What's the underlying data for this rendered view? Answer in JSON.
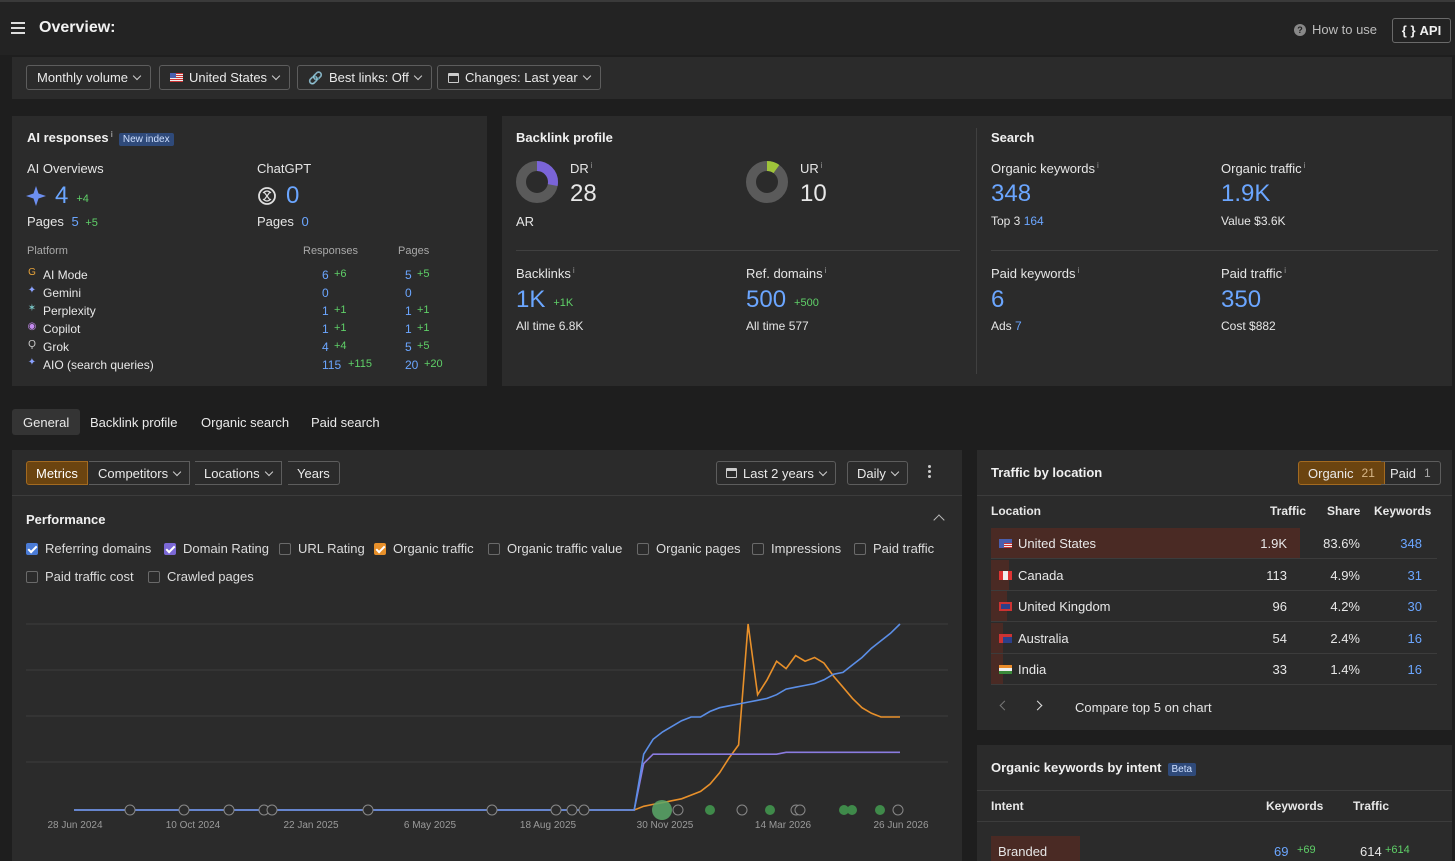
{
  "header": {
    "title": "Overview:",
    "how_to_use": "How to use",
    "api": "API",
    "api_icon": "{ }"
  },
  "filters": {
    "volume": "Monthly volume",
    "country": "United States",
    "best_links": "Best links: Off",
    "changes": "Changes: Last year"
  },
  "ai": {
    "title": "AI responses",
    "badge": "New index",
    "overviews_label": "AI Overviews",
    "overviews_value": "4",
    "overviews_delta": "+4",
    "chatgpt_label": "ChatGPT",
    "chatgpt_value": "0",
    "pages_label": "Pages",
    "overviews_pages": "5",
    "overviews_pages_delta": "+5",
    "chatgpt_pages": "0",
    "col_platform": "Platform",
    "col_responses": "Responses",
    "col_pages": "Pages",
    "rows": [
      {
        "name": "AI Mode",
        "icon": "google-icon",
        "responses": "6",
        "responses_delta": "+6",
        "pages": "5",
        "pages_delta": "+5"
      },
      {
        "name": "Gemini",
        "icon": "gemini-icon",
        "responses": "0",
        "responses_delta": "",
        "pages": "0",
        "pages_delta": ""
      },
      {
        "name": "Perplexity",
        "icon": "perplexity-icon",
        "responses": "1",
        "responses_delta": "+1",
        "pages": "1",
        "pages_delta": "+1"
      },
      {
        "name": "Copilot",
        "icon": "copilot-icon",
        "responses": "1",
        "responses_delta": "+1",
        "pages": "1",
        "pages_delta": "+1"
      },
      {
        "name": "Grok",
        "icon": "grok-icon",
        "responses": "4",
        "responses_delta": "+4",
        "pages": "5",
        "pages_delta": "+5"
      },
      {
        "name": "AIO (search queries)",
        "icon": "aio-icon",
        "responses": "115",
        "responses_delta": "+115",
        "pages": "20",
        "pages_delta": "+20"
      }
    ]
  },
  "backlinks": {
    "title": "Backlink profile",
    "dr_label": "DR",
    "dr_value": "28",
    "dr_fraction": 0.28,
    "ar_label": "AR",
    "ur_label": "UR",
    "ur_value": "10",
    "ur_fraction": 0.1,
    "backlinks_label": "Backlinks",
    "backlinks_value": "1K",
    "backlinks_delta": "+1K",
    "backlinks_alltime_label": "All time",
    "backlinks_alltime": "6.8K",
    "refdomains_label": "Ref. domains",
    "refdomains_value": "500",
    "refdomains_delta": "+500",
    "refdomains_alltime_label": "All time",
    "refdomains_alltime": "577"
  },
  "search": {
    "title": "Search",
    "ok_label": "Organic keywords",
    "ok_value": "348",
    "top3_label": "Top 3",
    "top3_value": "164",
    "ot_label": "Organic traffic",
    "ot_value": "1.9K",
    "value_label": "Value",
    "value_value": "$3.6K",
    "pk_label": "Paid keywords",
    "pk_value": "6",
    "ads_label": "Ads",
    "ads_value": "7",
    "pt_label": "Paid traffic",
    "pt_value": "350",
    "cost_label": "Cost",
    "cost_value": "$882"
  },
  "tabs": [
    "General",
    "Backlink profile",
    "Organic search",
    "Paid search"
  ],
  "chart_toolbar": {
    "metrics": "Metrics",
    "competitors": "Competitors",
    "locations": "Locations",
    "years": "Years",
    "range": "Last 2 years",
    "interval": "Daily"
  },
  "performance": {
    "title": "Performance",
    "checkboxes": [
      {
        "label": "Referring domains",
        "checked": true,
        "color": "#4a7bd6"
      },
      {
        "label": "Domain Rating",
        "checked": true,
        "color": "#7b68d6"
      },
      {
        "label": "URL Rating",
        "checked": false,
        "color": ""
      },
      {
        "label": "Organic traffic",
        "checked": true,
        "color": "#e8902a"
      },
      {
        "label": "Organic traffic value",
        "checked": false,
        "color": ""
      },
      {
        "label": "Organic pages",
        "checked": false,
        "color": ""
      },
      {
        "label": "Impressions",
        "checked": false,
        "color": ""
      },
      {
        "label": "Paid traffic",
        "checked": false,
        "color": ""
      },
      {
        "label": "Paid traffic cost",
        "checked": false,
        "color": ""
      },
      {
        "label": "Crawled pages",
        "checked": false,
        "color": ""
      }
    ]
  },
  "chart_data": {
    "type": "line",
    "x_ticks": [
      "28 Jun 2024",
      "10 Oct 2024",
      "22 Jan 2025",
      "6 May 2025",
      "18 Aug 2025",
      "30 Nov 2025",
      "14 Mar 2026",
      "26 Jun 2026"
    ],
    "grid": true,
    "series": [
      {
        "name": "Referring domains",
        "color": "#5b8ee6",
        "values": [
          0,
          0,
          0,
          0,
          0,
          0,
          0,
          0,
          0,
          0,
          0,
          0,
          0,
          0,
          0,
          0,
          0,
          0,
          0,
          0,
          0,
          0,
          0,
          0,
          0,
          0,
          0,
          0,
          0,
          0,
          0,
          0,
          0,
          0,
          0,
          0,
          0,
          0,
          0,
          0,
          0,
          0,
          0,
          0,
          0,
          0,
          0,
          0,
          0,
          0,
          0,
          0,
          0,
          0,
          0,
          0,
          0,
          0,
          0,
          0,
          0.3,
          0.38,
          0.42,
          0.45,
          0.48,
          0.5,
          0.5,
          0.53,
          0.55,
          0.56,
          0.57,
          0.58,
          0.59,
          0.6,
          0.62,
          0.65,
          0.66,
          0.67,
          0.68,
          0.7,
          0.73,
          0.74,
          0.78,
          0.82,
          0.87,
          0.91,
          0.95,
          1.0
        ]
      },
      {
        "name": "Domain Rating",
        "color": "#8a7be0",
        "values": [
          0,
          0,
          0,
          0,
          0,
          0,
          0,
          0,
          0,
          0,
          0,
          0,
          0,
          0,
          0,
          0,
          0,
          0,
          0,
          0,
          0,
          0,
          0,
          0,
          0,
          0,
          0,
          0,
          0,
          0,
          0,
          0,
          0,
          0,
          0,
          0,
          0,
          0,
          0,
          0,
          0,
          0,
          0,
          0,
          0,
          0,
          0,
          0,
          0,
          0,
          0,
          0,
          0,
          0,
          0,
          0,
          0,
          0,
          0,
          0,
          0.25,
          0.3,
          0.3,
          0.3,
          0.3,
          0.3,
          0.3,
          0.3,
          0.3,
          0.3,
          0.3,
          0.3,
          0.3,
          0.3,
          0.3,
          0.31,
          0.31,
          0.31,
          0.31,
          0.31,
          0.31,
          0.31,
          0.31,
          0.31,
          0.31,
          0.31,
          0.31,
          0.31
        ]
      },
      {
        "name": "Organic traffic",
        "color": "#e8902a",
        "values": [
          0,
          0,
          0,
          0,
          0,
          0,
          0,
          0,
          0,
          0,
          0,
          0,
          0,
          0,
          0,
          0,
          0,
          0,
          0,
          0,
          0,
          0,
          0,
          0,
          0,
          0,
          0,
          0,
          0,
          0,
          0,
          0,
          0,
          0,
          0,
          0,
          0,
          0,
          0,
          0,
          0,
          0,
          0,
          0,
          0,
          0,
          0,
          0,
          0,
          0,
          0,
          0,
          0,
          0,
          0,
          0,
          0,
          0,
          0,
          0,
          0.02,
          0.03,
          0.04,
          0.05,
          0.06,
          0.08,
          0.1,
          0.14,
          0.2,
          0.28,
          0.35,
          1.0,
          0.62,
          0.7,
          0.8,
          0.76,
          0.83,
          0.8,
          0.82,
          0.79,
          0.72,
          0.66,
          0.6,
          0.55,
          0.52,
          0.5,
          0.5,
          0.5
        ]
      }
    ]
  },
  "traffic_by_location": {
    "title": "Traffic by location",
    "organic_label": "Organic",
    "organic_count": "21",
    "paid_label": "Paid",
    "paid_count": "1",
    "col_location": "Location",
    "col_traffic": "Traffic",
    "col_share": "Share",
    "col_keywords": "Keywords",
    "rows": [
      {
        "name": "United States",
        "traffic": "1.9K",
        "share": "83.6%",
        "share_fraction": 0.836,
        "keywords": "348",
        "flag": "us-flag"
      },
      {
        "name": "Canada",
        "traffic": "113",
        "share": "4.9%",
        "share_fraction": 0.049,
        "keywords": "31",
        "flag": "ca-flag"
      },
      {
        "name": "United Kingdom",
        "traffic": "96",
        "share": "4.2%",
        "share_fraction": 0.042,
        "keywords": "30",
        "flag": "uk-flag"
      },
      {
        "name": "Australia",
        "traffic": "54",
        "share": "2.4%",
        "share_fraction": 0.024,
        "keywords": "16",
        "flag": "au-flag"
      },
      {
        "name": "India",
        "traffic": "33",
        "share": "1.4%",
        "share_fraction": 0.014,
        "keywords": "16",
        "flag": "in-flag"
      }
    ],
    "compare_label": "Compare top 5 on chart"
  },
  "intent": {
    "title": "Organic keywords by intent",
    "badge": "Beta",
    "col_intent": "Intent",
    "col_keywords": "Keywords",
    "col_traffic": "Traffic",
    "rows": [
      {
        "name": "Branded",
        "keywords": "69",
        "keywords_delta": "+69",
        "traffic": "614",
        "traffic_delta": "+614"
      }
    ]
  }
}
